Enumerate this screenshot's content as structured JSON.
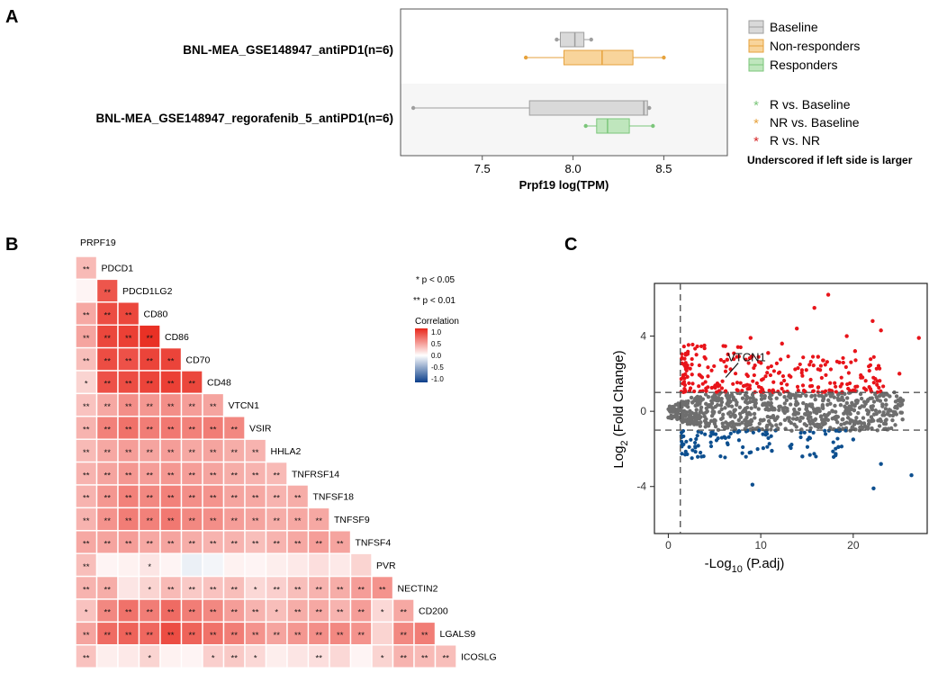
{
  "panels": {
    "a": "A",
    "b": "B",
    "c": "C"
  },
  "chart_data": [
    {
      "id": "A",
      "type": "boxplot",
      "xlabel": "Prpf19 log(TPM)",
      "xlim": [
        7.05,
        8.85
      ],
      "xticks": [
        7.5,
        8.0,
        8.5
      ],
      "xtick_labels": [
        "7.5",
        "8.0",
        "8.5"
      ],
      "datasets": [
        {
          "label": "BNL-MEA_GSE148947_antiPD1(n=6)",
          "boxes": [
            {
              "group": "Baseline",
              "min": 7.91,
              "q1": 7.93,
              "median": 8.01,
              "q3": 8.06,
              "max": 8.1,
              "points": [
                7.91,
                8.1
              ]
            },
            {
              "group": "Non-responders",
              "min": 7.74,
              "q1": 7.95,
              "median": 8.16,
              "q3": 8.33,
              "max": 8.5,
              "points": [
                7.74,
                8.5
              ]
            }
          ]
        },
        {
          "label": "BNL-MEA_GSE148947_regorafenib_5_antiPD1(n=6)",
          "boxes": [
            {
              "group": "Baseline",
              "min": 7.12,
              "q1": 7.76,
              "median": 8.39,
              "q3": 8.41,
              "max": 8.42,
              "points": [
                7.12,
                8.42
              ]
            },
            {
              "group": "Responders",
              "min": 8.07,
              "q1": 8.13,
              "median": 8.19,
              "q3": 8.31,
              "max": 8.44,
              "points": [
                8.07,
                8.44
              ]
            }
          ]
        }
      ],
      "legend": [
        {
          "label": "Baseline",
          "color": "#9e9e9e",
          "fill": "#d9d9d9"
        },
        {
          "label": "Non-responders",
          "color": "#e6a23c",
          "fill": "#f8d49b"
        },
        {
          "label": "Responders",
          "color": "#7bc67a",
          "fill": "#bfe6bd"
        }
      ],
      "significance_legend": [
        {
          "label": "R vs. Baseline",
          "color": "#7bc67a"
        },
        {
          "label": "NR vs. Baseline",
          "color": "#e6a23c"
        },
        {
          "label": "R vs. NR",
          "color": "#d62728"
        }
      ],
      "note": "Underscored if left side is larger"
    },
    {
      "id": "B",
      "type": "heatmap",
      "title": "Correlation",
      "genes": [
        "PRPF19",
        "PDCD1",
        "PDCD1LG2",
        "CD80",
        "CD86",
        "CD70",
        "CD48",
        "VTCN1",
        "VSIR",
        "HHLA2",
        "TNFRSF14",
        "TNFSF18",
        "TNFSF9",
        "TNFSF4",
        "PVR",
        "NECTIN2",
        "CD200",
        "LGALS9",
        "ICOSLG"
      ],
      "legend_ticks": [
        "1.0",
        "0.5",
        "0.0",
        "-0.5",
        "-1.0"
      ],
      "sig_legend": [
        "* p < 0.05",
        "** p < 0.01"
      ],
      "rows": [
        {
          "r": [
            0.32
          ],
          "s": [
            "**"
          ]
        },
        {
          "r": [
            0.05,
            0.78
          ],
          "s": [
            "",
            "**"
          ]
        },
        {
          "r": [
            0.4,
            0.82,
            0.85
          ],
          "s": [
            "**",
            "**",
            "**"
          ]
        },
        {
          "r": [
            0.42,
            0.85,
            0.88,
            0.95
          ],
          "s": [
            "**",
            "**",
            "**",
            "**"
          ]
        },
        {
          "r": [
            0.3,
            0.82,
            0.8,
            0.86,
            0.86
          ],
          "s": [
            "**",
            "**",
            "**",
            "**",
            "**"
          ]
        },
        {
          "r": [
            0.2,
            0.8,
            0.82,
            0.86,
            0.88,
            0.85
          ],
          "s": [
            "*",
            "**",
            "**",
            "**",
            "**",
            "**"
          ]
        },
        {
          "r": [
            0.28,
            0.4,
            0.52,
            0.48,
            0.52,
            0.45,
            0.42
          ],
          "s": [
            "**",
            "**",
            "**",
            "**",
            "**",
            "**",
            "**"
          ]
        },
        {
          "r": [
            0.35,
            0.58,
            0.65,
            0.6,
            0.62,
            0.58,
            0.6,
            0.55
          ],
          "s": [
            "**",
            "**",
            "**",
            "**",
            "**",
            "**",
            "**",
            "**"
          ]
        },
        {
          "r": [
            0.32,
            0.4,
            0.45,
            0.42,
            0.45,
            0.4,
            0.42,
            0.38,
            0.35
          ],
          "s": [
            "**",
            "**",
            "**",
            "**",
            "**",
            "**",
            "**",
            "**",
            "**"
          ]
        },
        {
          "r": [
            0.35,
            0.42,
            0.48,
            0.45,
            0.48,
            0.45,
            0.42,
            0.38,
            0.35,
            0.32
          ],
          "s": [
            "**",
            "**",
            "**",
            "**",
            "**",
            "**",
            "**",
            "**",
            "**",
            "**"
          ]
        },
        {
          "r": [
            0.35,
            0.48,
            0.58,
            0.55,
            0.58,
            0.52,
            0.5,
            0.42,
            0.4,
            0.35,
            0.38
          ],
          "s": [
            "**",
            "**",
            "**",
            "**",
            "**",
            "**",
            "**",
            "**",
            "**",
            "**",
            "**"
          ]
        },
        {
          "r": [
            0.35,
            0.5,
            0.6,
            0.58,
            0.62,
            0.55,
            0.52,
            0.45,
            0.42,
            0.38,
            0.4,
            0.4
          ],
          "s": [
            "**",
            "**",
            "**",
            "**",
            "**",
            "**",
            "**",
            "**",
            "**",
            "**",
            "**",
            "**"
          ]
        },
        {
          "r": [
            0.4,
            0.42,
            0.45,
            0.4,
            0.42,
            0.38,
            0.35,
            0.35,
            0.3,
            0.35,
            0.4,
            0.45,
            0.42
          ],
          "s": [
            "**",
            "**",
            "**",
            "**",
            "**",
            "**",
            "**",
            "**",
            "**",
            "**",
            "**",
            "**",
            "**"
          ]
        },
        {
          "r": [
            0.3,
            0.05,
            0.06,
            0.12,
            0.05,
            -0.08,
            -0.05,
            0.06,
            0.05,
            0.08,
            0.1,
            0.15,
            0.1,
            0.2
          ],
          "s": [
            "**",
            "",
            "",
            "*",
            "",
            "",
            "",
            "",
            "",
            "",
            "",
            "",
            "",
            ""
          ]
        },
        {
          "r": [
            0.35,
            0.38,
            0.12,
            0.2,
            0.32,
            0.25,
            0.28,
            0.3,
            0.18,
            0.22,
            0.3,
            0.35,
            0.38,
            0.45,
            0.5
          ],
          "s": [
            "**",
            "**",
            "",
            "*",
            "**",
            "**",
            "**",
            "**",
            "*",
            "**",
            "**",
            "**",
            "**",
            "**",
            "**"
          ]
        },
        {
          "r": [
            0.28,
            0.55,
            0.65,
            0.6,
            0.68,
            0.6,
            0.55,
            0.45,
            0.35,
            0.3,
            0.38,
            0.4,
            0.35,
            0.45,
            0.18,
            0.4
          ],
          "s": [
            "*",
            "**",
            "**",
            "**",
            "**",
            "**",
            "**",
            "**",
            "**",
            "*",
            "**",
            "**",
            "**",
            "**",
            "*",
            "**"
          ]
        },
        {
          "r": [
            0.42,
            0.68,
            0.72,
            0.7,
            0.82,
            0.72,
            0.65,
            0.6,
            0.5,
            0.42,
            0.48,
            0.52,
            0.55,
            0.5,
            0.2,
            0.55,
            0.6
          ],
          "s": [
            "**",
            "**",
            "**",
            "**",
            "**",
            "**",
            "**",
            "**",
            "**",
            "**",
            "**",
            "**",
            "**",
            "**",
            "",
            "**",
            "**"
          ]
        },
        {
          "r": [
            0.28,
            0.08,
            0.1,
            0.2,
            0.06,
            0.05,
            0.22,
            0.25,
            0.18,
            0.08,
            0.12,
            0.15,
            0.18,
            0.05,
            0.2,
            0.35,
            0.32,
            0.3
          ],
          "s": [
            "**",
            "",
            "",
            "*",
            "",
            "",
            "*",
            "**",
            "*",
            "",
            "",
            "**",
            "",
            "",
            "*",
            "**",
            "**",
            "**"
          ]
        }
      ]
    },
    {
      "id": "C",
      "type": "scatter",
      "subtype": "volcano",
      "xlabel_prefix": "-Log",
      "xlabel_sub": "10",
      "xlabel_suffix": " (P.adj)",
      "ylabel_prefix": "Log",
      "ylabel_sub": "2",
      "ylabel_suffix": " (Fold Change)",
      "xlim": [
        -1.5,
        28
      ],
      "ylim": [
        -6.5,
        6.8
      ],
      "xticks": [
        0,
        10,
        20
      ],
      "xtick_labels": [
        "0",
        "10",
        "20"
      ],
      "yticks": [
        -4,
        0,
        4
      ],
      "ytick_labels": [
        "-4",
        "0",
        "4"
      ],
      "thresholds": {
        "x": 1.3,
        "y": [
          -1,
          1
        ]
      },
      "colors": {
        "up": "#e8141a",
        "down": "#0d4f8f",
        "ns": "#6e6e6e"
      },
      "annotation": {
        "label": "VTCN1",
        "x": 6.2,
        "y": 1.8
      },
      "up_outliers": [
        [
          17.3,
          6.2
        ],
        [
          22.1,
          4.8
        ],
        [
          15.8,
          5.5
        ],
        [
          27.1,
          3.9
        ],
        [
          23.0,
          4.3
        ],
        [
          20.2,
          3.2
        ],
        [
          18.5,
          2.6
        ],
        [
          25.0,
          2.0
        ],
        [
          12.3,
          3.6
        ],
        [
          16.2,
          2.9
        ],
        [
          21.0,
          1.8
        ],
        [
          13.9,
          4.4
        ],
        [
          8.9,
          3.9
        ],
        [
          10.8,
          3.1
        ],
        [
          19.3,
          4.0
        ]
      ],
      "down_outliers": [
        [
          9.1,
          -3.9
        ],
        [
          22.2,
          -4.1
        ],
        [
          26.3,
          -3.4
        ],
        [
          14.5,
          -2.4
        ],
        [
          23.0,
          -2.8
        ],
        [
          18.4,
          -1.9
        ],
        [
          11.2,
          -2.1
        ],
        [
          20.0,
          -1.5
        ]
      ],
      "ns_outliers": [
        [
          16.1,
          -0.7
        ],
        [
          18.4,
          0.6
        ],
        [
          21.2,
          0.5
        ],
        [
          23.5,
          -0.5
        ],
        [
          14.0,
          0.4
        ],
        [
          19.3,
          -0.6
        ],
        [
          25.1,
          0.3
        ]
      ]
    }
  ]
}
